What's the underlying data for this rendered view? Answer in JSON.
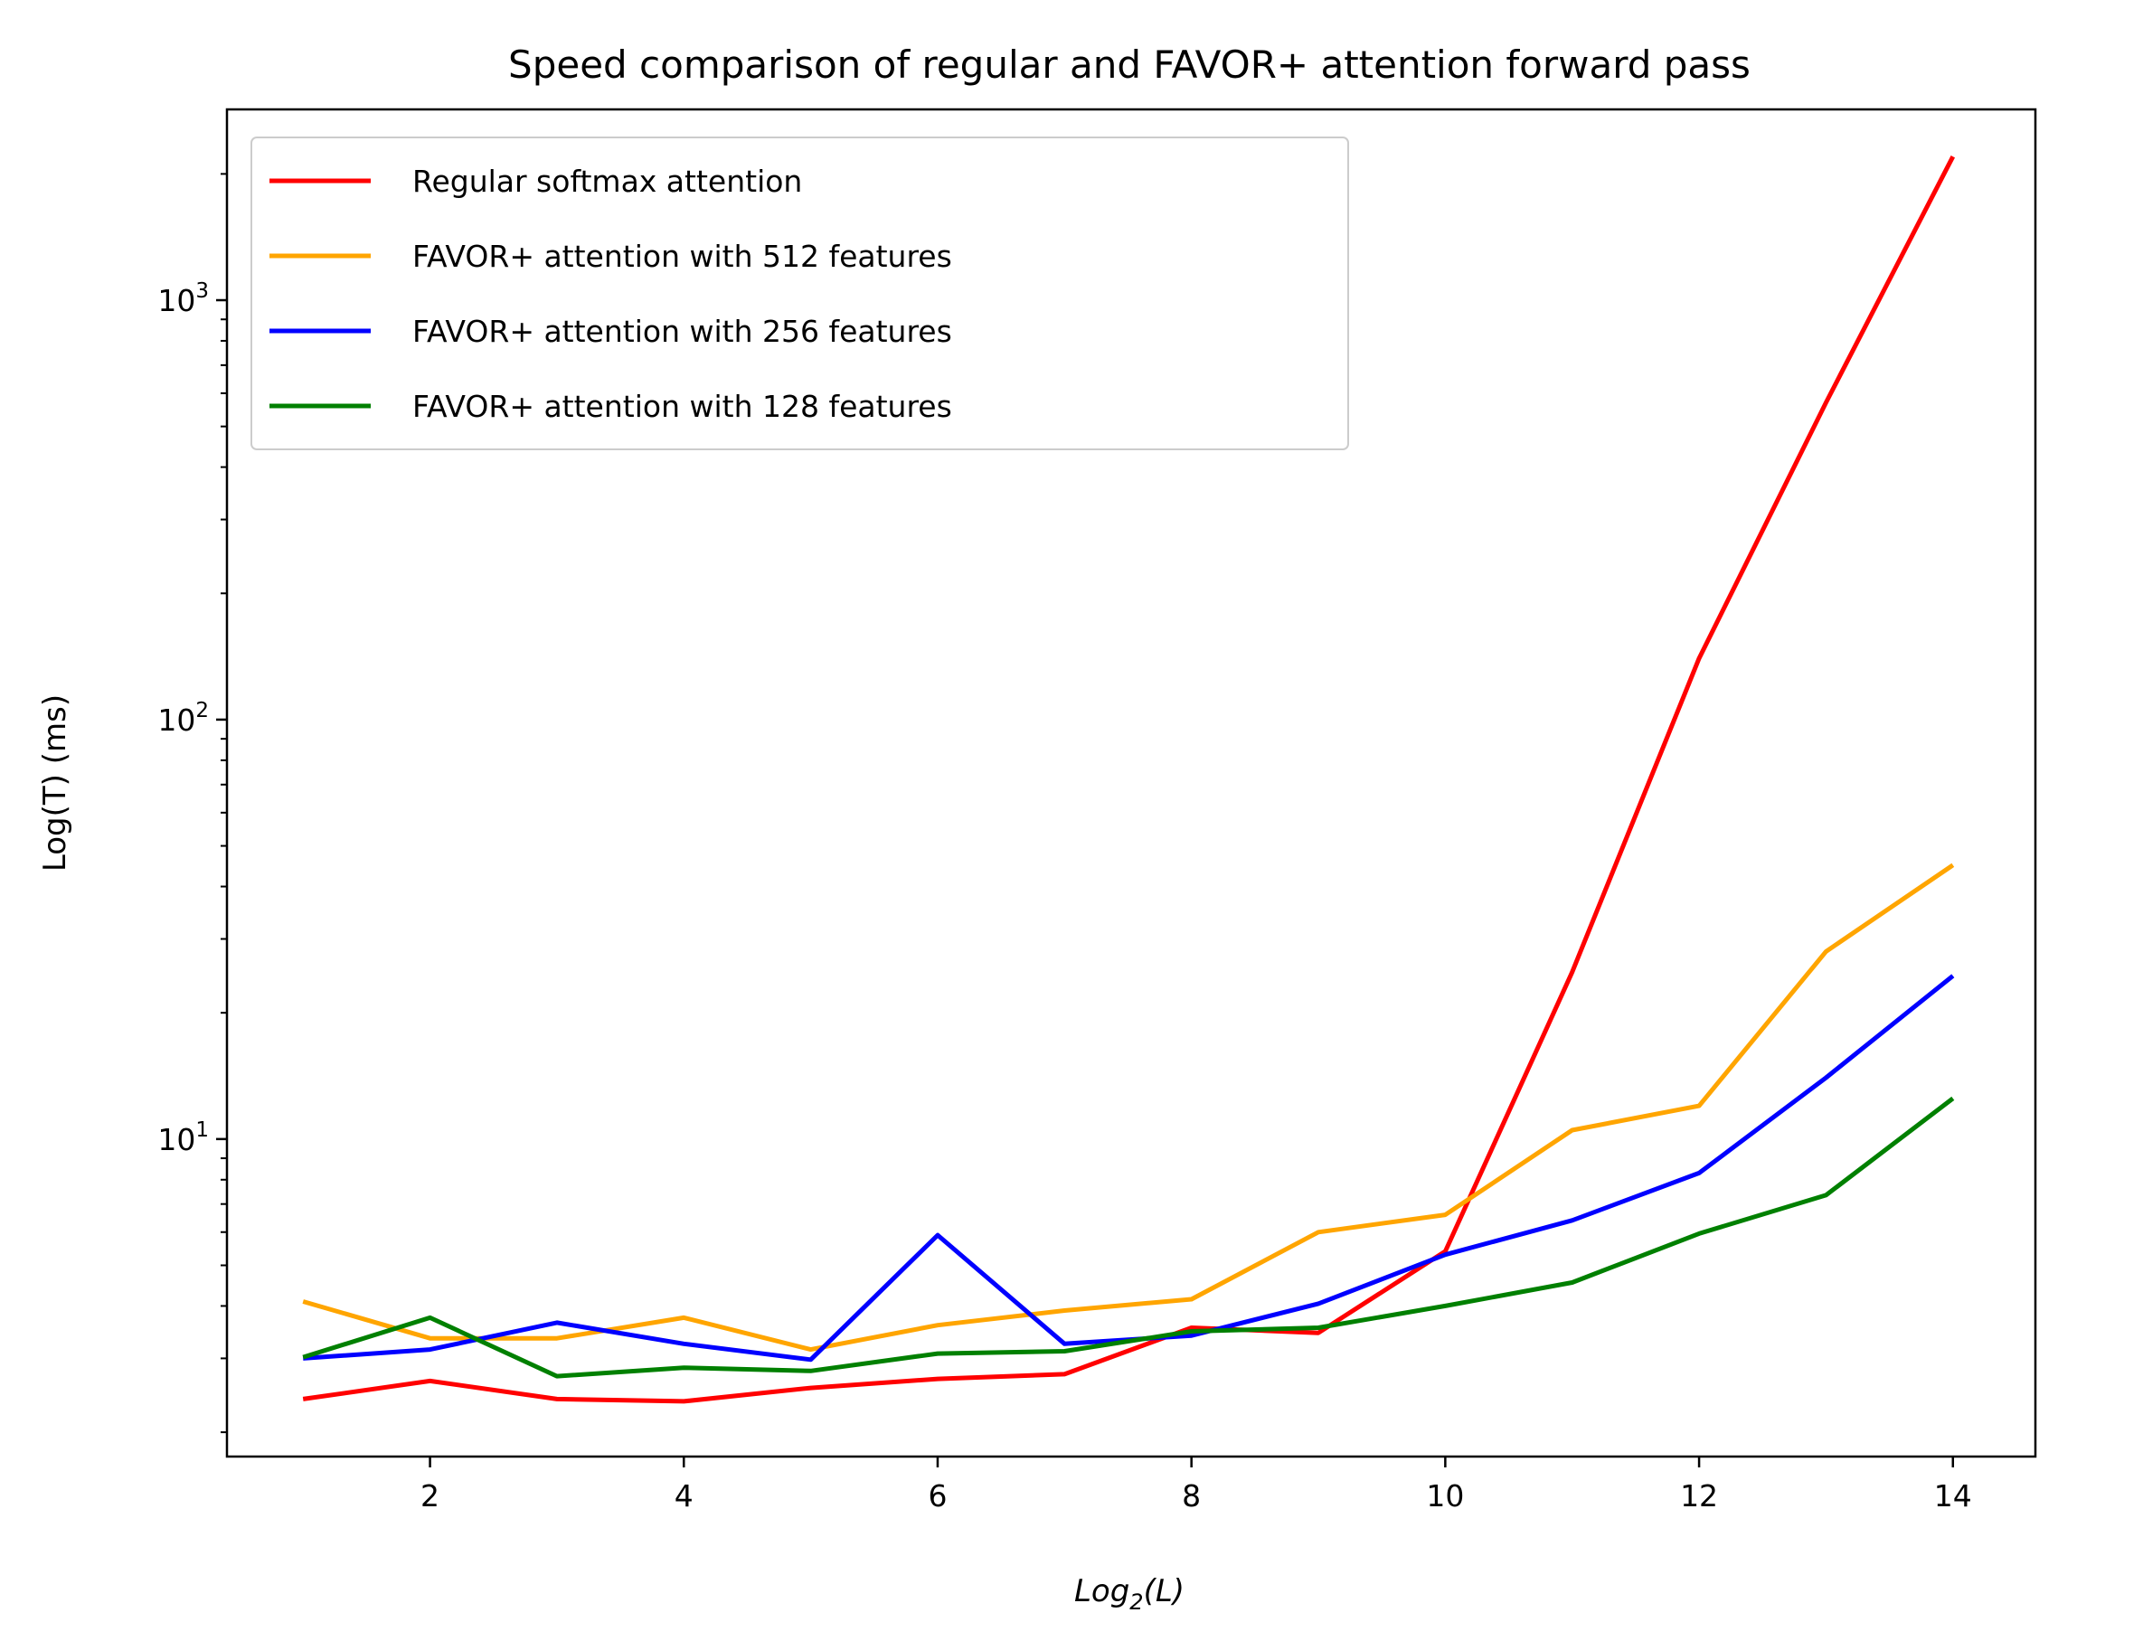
{
  "chart_data": {
    "type": "line",
    "title": "Speed comparison of regular and FAVOR+ attention forward pass",
    "xlabel": "Log_2(L)",
    "ylabel": "Log(T) (ms)",
    "y_scale": "log",
    "xlim": [
      0.4,
      14.65
    ],
    "ylim": [
      1.75,
      2850
    ],
    "grid": false,
    "legend_position": "upper-left",
    "x_ticks": [
      2,
      4,
      6,
      8,
      10,
      12,
      14
    ],
    "y_ticks": [
      10,
      100,
      1000
    ],
    "x": [
      1,
      2,
      3,
      4,
      5,
      6,
      7,
      8,
      9,
      10,
      11,
      12,
      13,
      14
    ],
    "series": [
      {
        "name": "Regular softmax attention",
        "color": "#ff0000",
        "values": [
          2.4,
          2.65,
          2.4,
          2.37,
          2.55,
          2.68,
          2.75,
          3.55,
          3.45,
          5.4,
          25,
          140,
          570,
          2200
        ]
      },
      {
        "name": "FAVOR+ attention with 512 features",
        "color": "#ffa500",
        "values": [
          4.1,
          3.35,
          3.35,
          3.75,
          3.15,
          3.6,
          3.9,
          4.15,
          6.0,
          6.6,
          10.5,
          12.0,
          28,
          45
        ]
      },
      {
        "name": "FAVOR+ attention with 256 features",
        "color": "#0000ff",
        "values": [
          3.0,
          3.15,
          3.65,
          3.25,
          2.98,
          5.9,
          3.25,
          3.4,
          4.05,
          5.3,
          6.4,
          8.3,
          14,
          24.5
        ]
      },
      {
        "name": "FAVOR+ attention with 128 features",
        "color": "#008000",
        "values": [
          3.02,
          3.75,
          2.72,
          2.85,
          2.8,
          3.08,
          3.12,
          3.48,
          3.55,
          4.0,
          4.55,
          5.95,
          7.35,
          12.5
        ]
      }
    ]
  }
}
